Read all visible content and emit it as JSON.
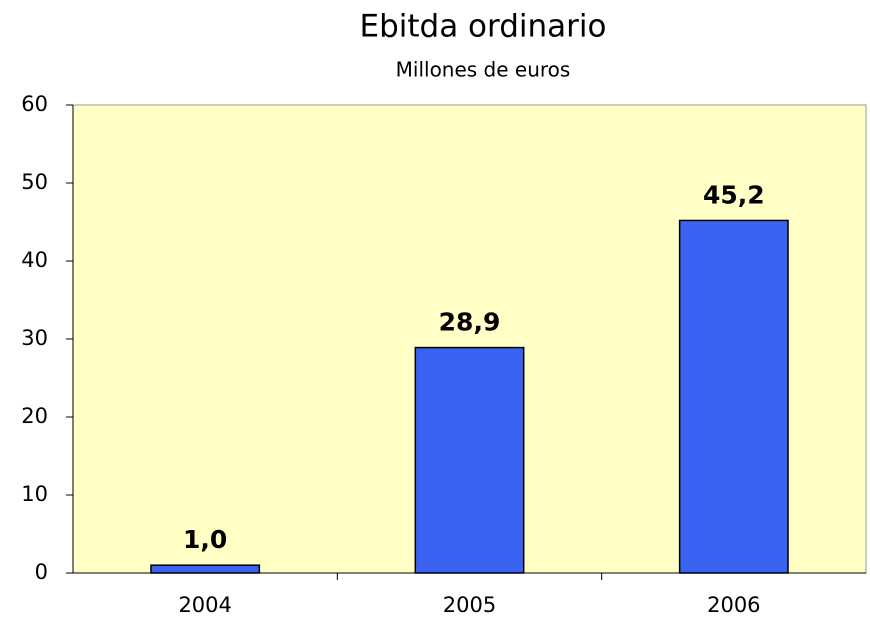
{
  "chart_data": {
    "type": "bar",
    "title": "Ebitda ordinario",
    "subtitle": "Millones de euros",
    "categories": [
      "2004",
      "2005",
      "2006"
    ],
    "values": [
      1.0,
      28.9,
      45.2
    ],
    "value_labels": [
      "1,0",
      "28,9",
      "45,2"
    ],
    "color": "#3b63f2",
    "ylim": [
      0,
      60
    ],
    "yticks": [
      0,
      10,
      20,
      30,
      40,
      50,
      60
    ],
    "grid": false
  }
}
